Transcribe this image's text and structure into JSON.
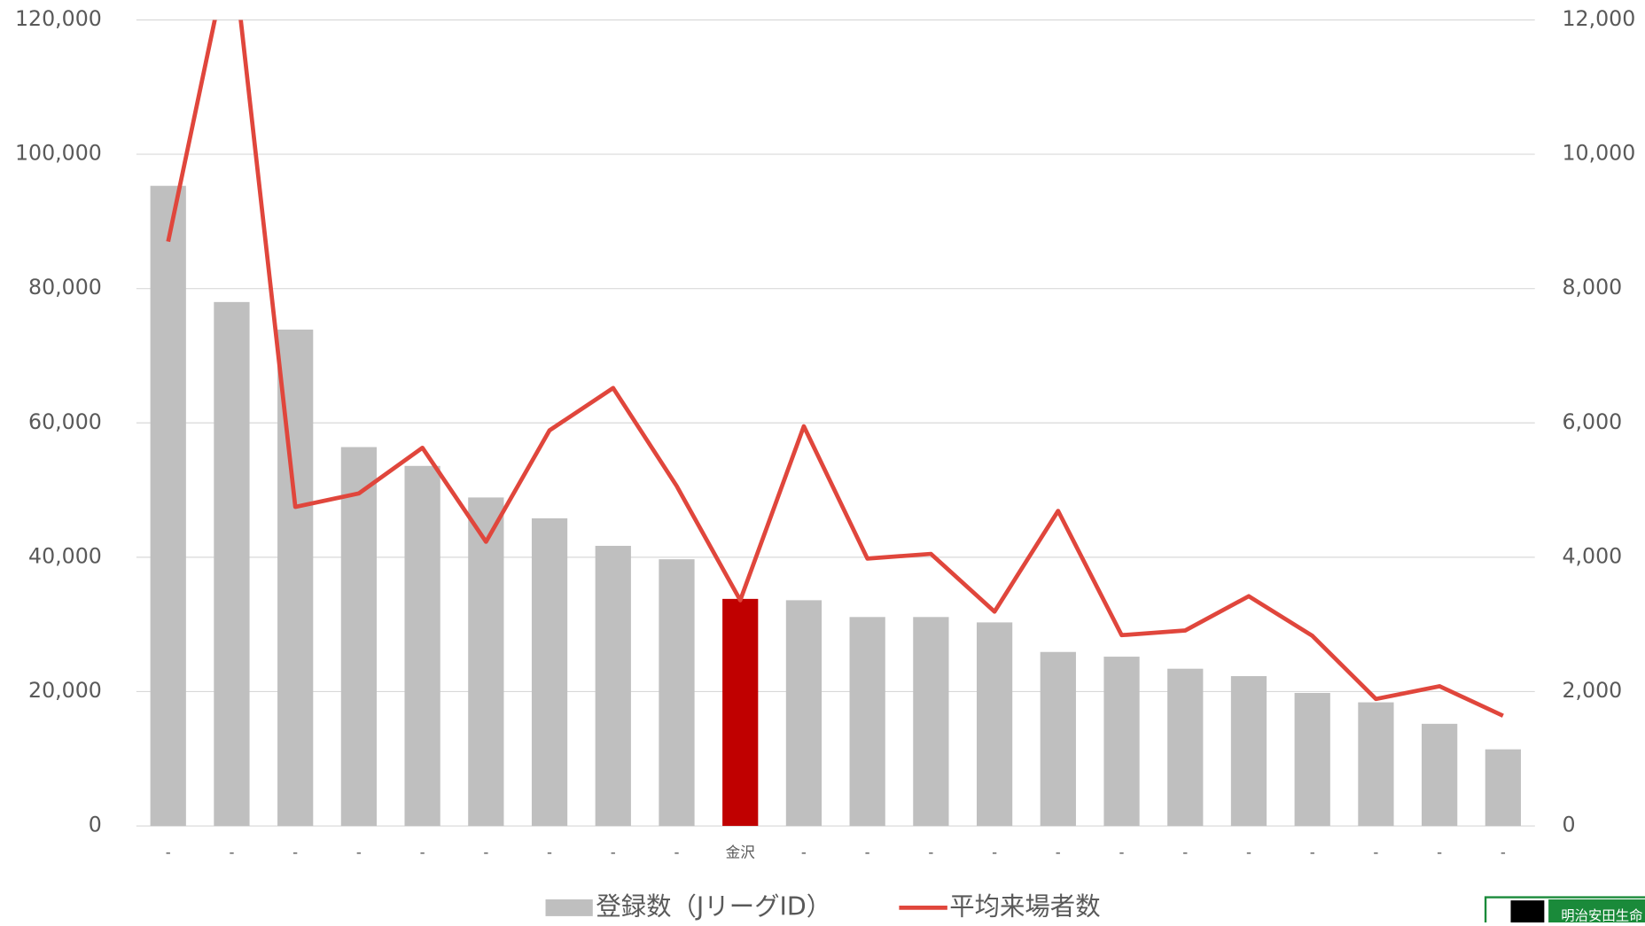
{
  "chart_data": {
    "type": "bar-line",
    "categories": [
      "-",
      "-",
      "-",
      "-",
      "-",
      "-",
      "-",
      "-",
      "-",
      "金沢",
      "-",
      "-",
      "-",
      "-",
      "-",
      "-",
      "-",
      "-",
      "-",
      "-",
      "-",
      "-"
    ],
    "series": [
      {
        "name": "登録数（JリーグID）",
        "type": "bar",
        "color": "#bfbfbf",
        "values": [
          95300,
          78000,
          73900,
          56400,
          53600,
          48900,
          45800,
          41700,
          39700,
          33800,
          33600,
          31100,
          31100,
          30300,
          25900,
          25200,
          23400,
          22300,
          19800,
          18400,
          15200,
          11400
        ]
      },
      {
        "name": "平均来場者数",
        "type": "line",
        "axis": "y2",
        "color": "#e0463c",
        "values": [
          8700,
          13200,
          4750,
          4950,
          5630,
          4230,
          5890,
          6520,
          5060,
          3360,
          5950,
          3980,
          4050,
          3190,
          4690,
          2840,
          2910,
          3420,
          2830,
          1890,
          2080,
          1640
        ]
      }
    ],
    "highlight": {
      "index": 9,
      "color": "#c00000"
    },
    "ylim": [
      0,
      120000
    ],
    "yticks": [
      0,
      {
        "value": 20000,
        "label": "20,000"
      },
      {
        "value": 40000,
        "label": "40,000"
      },
      {
        "value": 60000,
        "label": "60,000"
      },
      {
        "value": 80000,
        "label": "80,000"
      },
      {
        "value": 100000,
        "label": "100,000"
      },
      {
        "value": 120000,
        "label": "120,000"
      }
    ],
    "y2lim": [
      0,
      12000
    ],
    "y2ticks": [
      0,
      {
        "value": 2000,
        "label": "2,000"
      },
      {
        "value": 4000,
        "label": "4,000"
      },
      {
        "value": 6000,
        "label": "6,000"
      },
      {
        "value": 8000,
        "label": "8,000"
      },
      {
        "value": 10000,
        "label": "10,000"
      },
      {
        "value": 12000,
        "label": "12,000"
      }
    ],
    "grid": true,
    "legend": "bottom",
    "logo": "明治安田生命"
  }
}
